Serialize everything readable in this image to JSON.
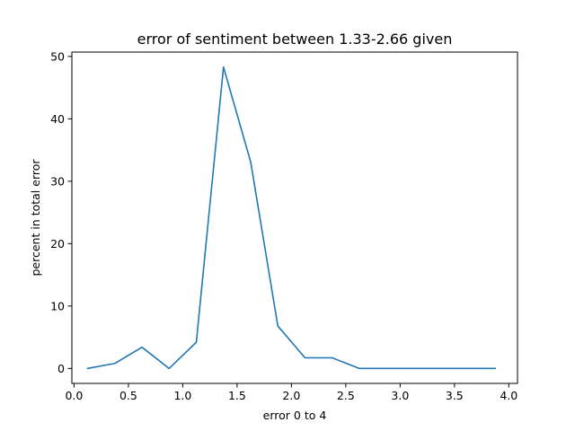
{
  "chart_data": {
    "type": "line",
    "title": "error of sentiment between 1.33-2.66 given",
    "xlabel": "error 0 to 4",
    "ylabel": "percent in total error",
    "xlim": [
      -0.02,
      4.08
    ],
    "ylim": [
      -2.4,
      50.7
    ],
    "xticks": [
      0.0,
      0.5,
      1.0,
      1.5,
      2.0,
      2.5,
      3.0,
      3.5,
      4.0
    ],
    "xtick_labels": [
      "0.0",
      "0.5",
      "1.0",
      "1.5",
      "2.0",
      "2.5",
      "3.0",
      "3.5",
      "4.0"
    ],
    "yticks": [
      0,
      10,
      20,
      30,
      40,
      50
    ],
    "ytick_labels": [
      "0",
      "10",
      "20",
      "30",
      "40",
      "50"
    ],
    "grid": false,
    "line_color": "#1f77b4",
    "series": [
      {
        "x": [
          0.125,
          0.375,
          0.625,
          0.875,
          1.125,
          1.375,
          1.625,
          1.875,
          2.125,
          2.375,
          2.625,
          2.875,
          3.125,
          3.375,
          3.625,
          3.875
        ],
        "y": [
          0.0,
          0.8,
          3.4,
          0.0,
          4.2,
          48.3,
          33.1,
          6.8,
          1.7,
          1.7,
          0.0,
          0.0,
          0.0,
          0.0,
          0.0,
          0.0
        ]
      }
    ]
  }
}
